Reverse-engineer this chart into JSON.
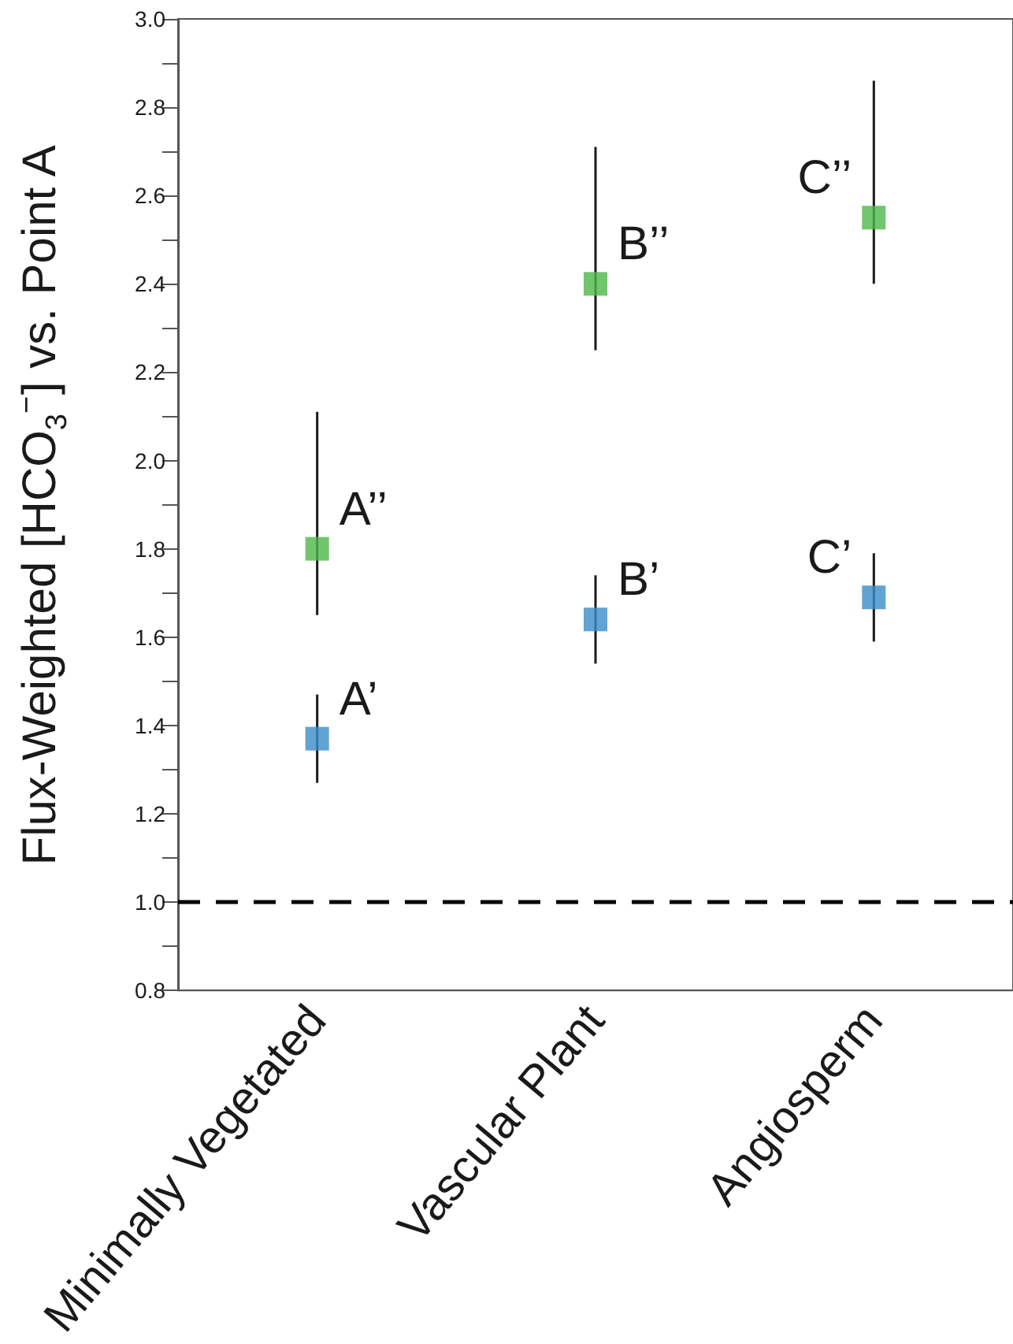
{
  "chart_data": {
    "type": "scatter",
    "ylabel": "Flux-Weighted [HCO$_{3}$$^{−}$] vs. Point A",
    "categories": [
      "Minimally Vegetated",
      "Vascular Plant",
      "Angiosperm"
    ],
    "series": [
      {
        "color": "#3a8cc8",
        "values": [
          1.37,
          1.64,
          1.69
        ],
        "errors": [
          [
            1.27,
            1.47
          ],
          [
            1.54,
            1.74
          ],
          [
            1.59,
            1.79
          ]
        ]
      },
      {
        "color": "#4db649",
        "values": [
          1.8,
          2.4,
          2.55
        ],
        "errors": [
          [
            1.65,
            2.11
          ],
          [
            2.25,
            2.71
          ],
          [
            2.4,
            2.86
          ]
        ]
      }
    ],
    "annotations": [
      {
        "text": "A’",
        "x": "Minimally Vegetated",
        "y": 1.37
      },
      {
        "text": "B’",
        "x": "Vascular Plant",
        "y": 1.64
      },
      {
        "text": "C’",
        "x": "Angiosperm",
        "y": 1.69
      },
      {
        "text": "A’’",
        "x": "Minimally Vegetated",
        "y": 1.8
      },
      {
        "text": "B’’",
        "x": "Vascular Plant",
        "y": 2.4
      },
      {
        "text": "C’’",
        "x": "Angiosperm",
        "y": 2.55
      }
    ],
    "ylim": [
      0.8,
      3.0
    ],
    "yticks": [
      0.8,
      {
        "value": 0.9,
        "label": null
      },
      {
        "value": 1,
        "label": "1.0"
      },
      {
        "value": 1.1,
        "label": null
      },
      1.2,
      {
        "value": 1.3,
        "label": null
      },
      1.4,
      {
        "value": 1.5,
        "label": null
      },
      1.6,
      {
        "value": 1.7,
        "label": null
      },
      1.8,
      {
        "value": 1.9,
        "label": null
      },
      {
        "value": 2,
        "label": "2.0"
      },
      {
        "value": 2.1,
        "label": null
      },
      2.2,
      {
        "value": 2.3,
        "label": null
      },
      2.4,
      {
        "value": 2.5,
        "label": null
      },
      2.6,
      {
        "value": 2.7,
        "label": null
      },
      2.8,
      {
        "value": 2.9,
        "label": null
      },
      {
        "value": 3,
        "label": "3.0"
      }
    ],
    "ref_lines": [
      {
        "axis": "y",
        "value": 1,
        "label": null,
        "color": "#000000",
        "line_style": "dashed"
      }
    ],
    "marker": "square",
    "grid": false,
    "legend": false
  }
}
